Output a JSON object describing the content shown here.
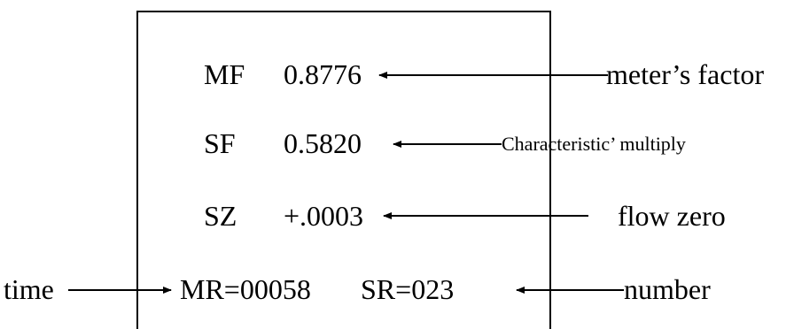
{
  "display": {
    "rows": [
      {
        "code": "MF",
        "value": "0.8776"
      },
      {
        "code": "SF",
        "value": "0.5820"
      },
      {
        "code": "SZ",
        "value": "+.0003"
      }
    ],
    "bottom_left": "MR=00058",
    "bottom_right": "SR=023"
  },
  "annotations": {
    "meter_factor": "meter’s factor",
    "characteristic": "Characteristic’ multiply",
    "flow_zero": "flow zero",
    "time": "time",
    "number": "number"
  }
}
